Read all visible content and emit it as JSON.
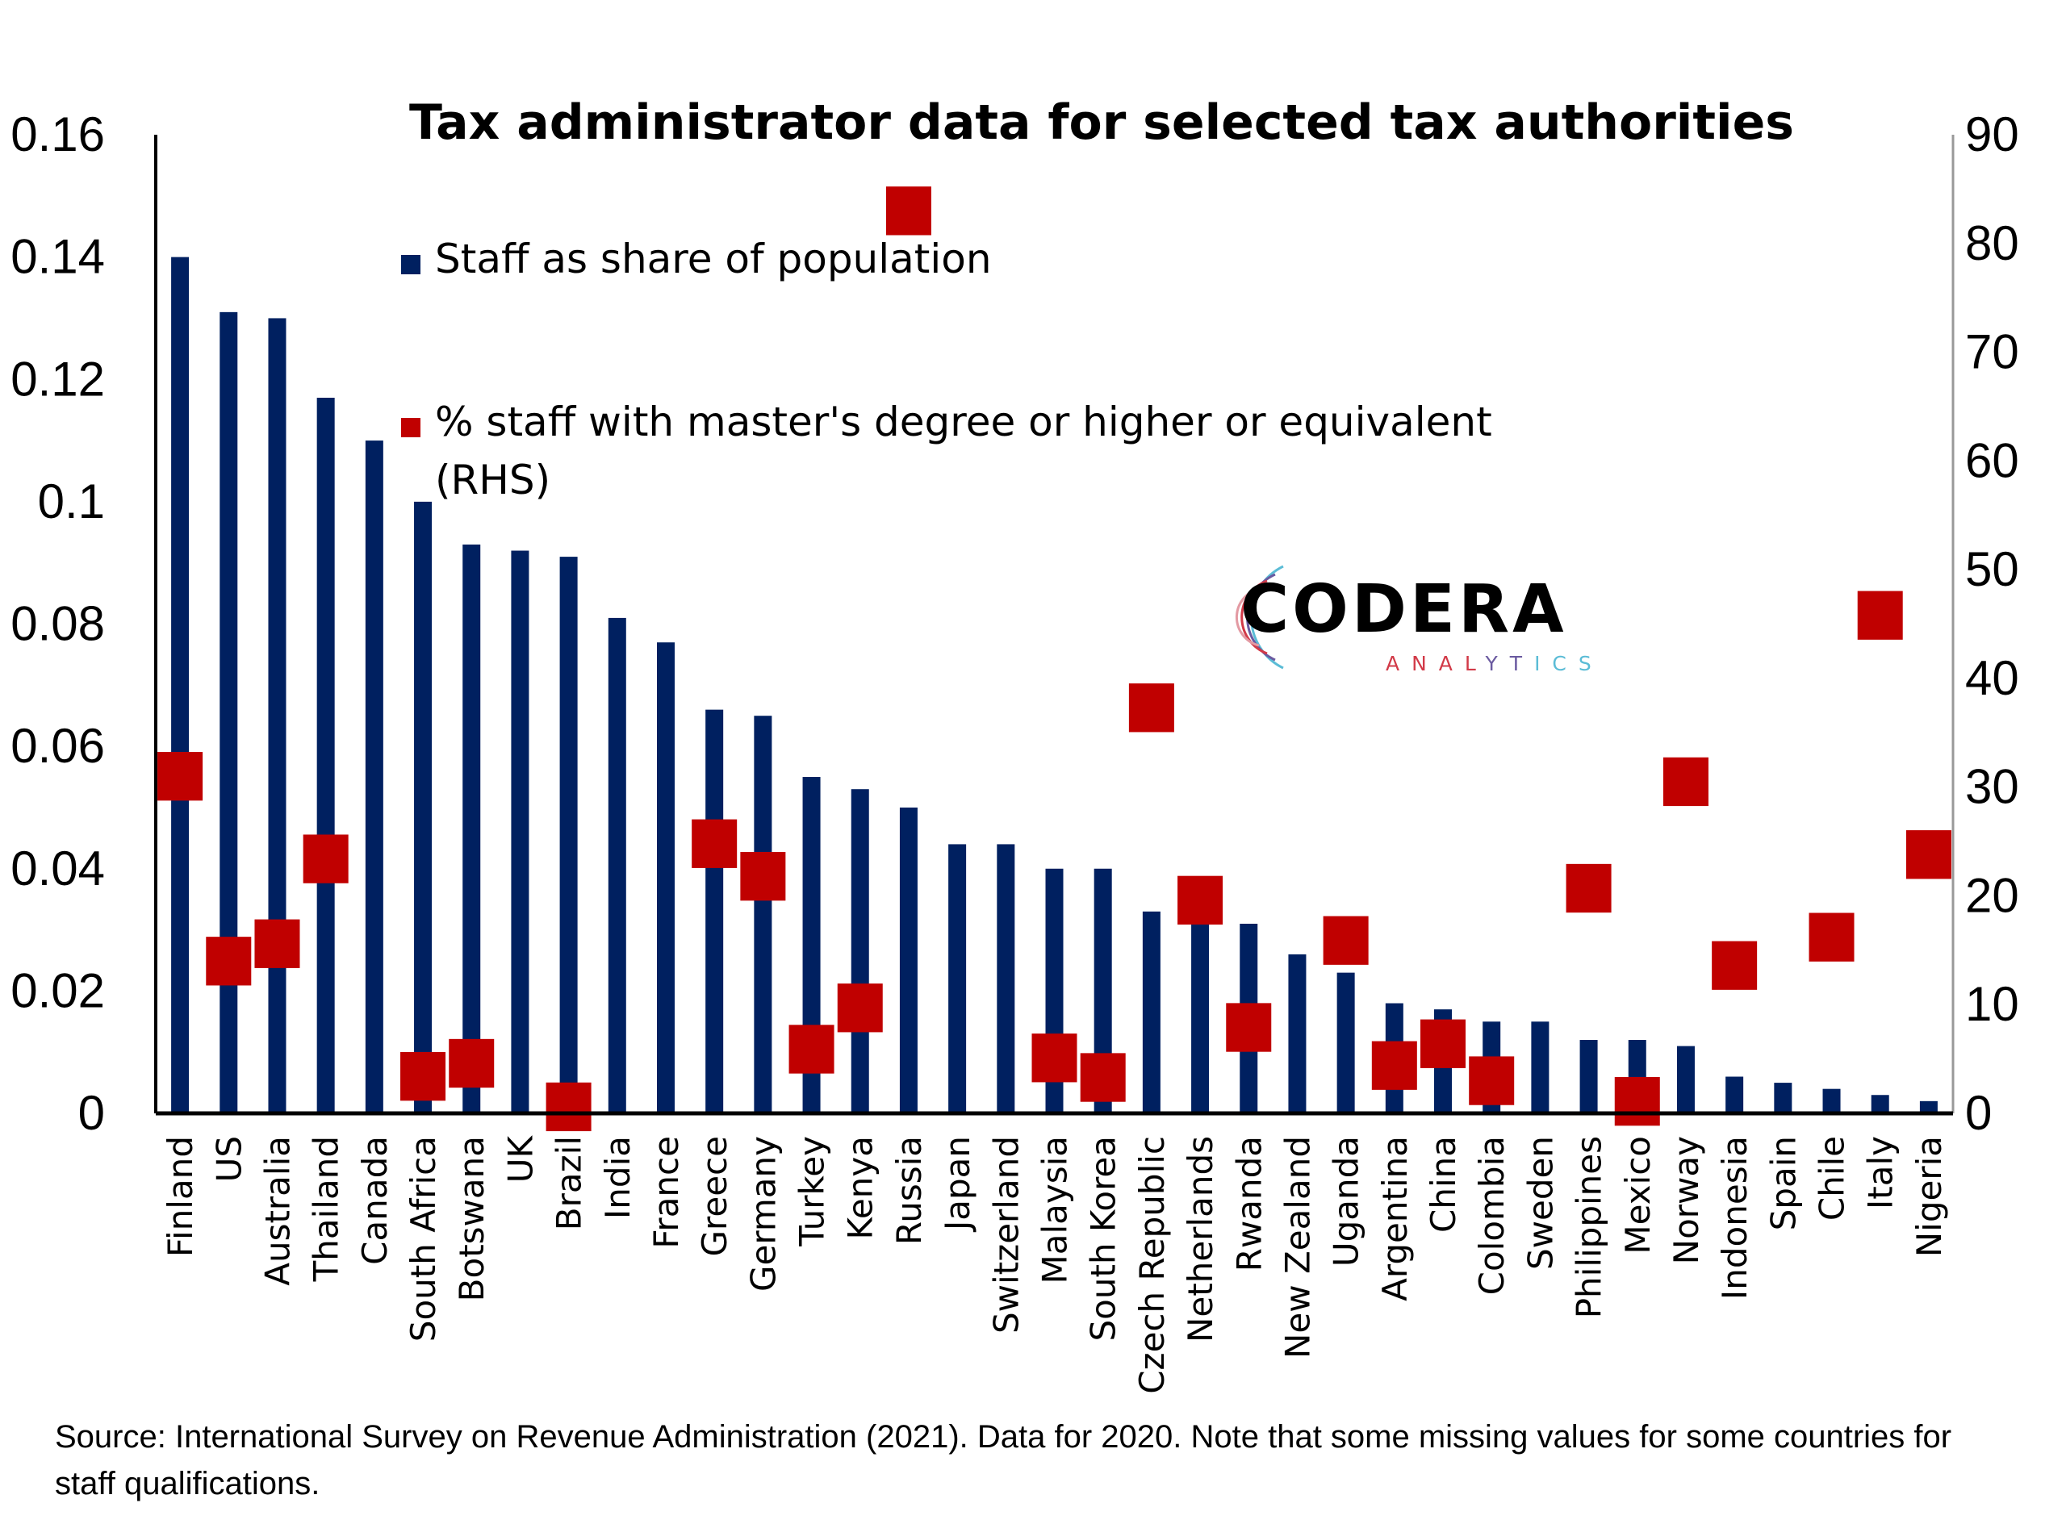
{
  "chart_data": {
    "type": "bar",
    "title": "Tax administrator data for selected tax authorities",
    "xlabel": "",
    "ylabel": "",
    "categories": [
      "Finland",
      "US",
      "Australia",
      "Thailand",
      "Canada",
      "South Africa",
      "Botswana",
      "UK",
      "Brazil",
      "India",
      "France",
      "Greece",
      "Germany",
      "Turkey",
      "Kenya",
      "Russia",
      "Japan",
      "Switzerland",
      "Malaysia",
      "South Korea",
      "Czech Republic",
      "Netherlands",
      "Rwanda",
      "New Zealand",
      "Uganda",
      "Argentina",
      "China",
      "Colombia",
      "Sweden",
      "Philippines",
      "Mexico",
      "Norway",
      "Indonesia",
      "Spain",
      "Chile",
      "Italy",
      "Nigeria"
    ],
    "series": [
      {
        "name": "Staff as share of population",
        "type": "bar",
        "axis": "left",
        "color": "#002060",
        "values": [
          0.14,
          0.131,
          0.13,
          0.117,
          0.11,
          0.1,
          0.093,
          0.092,
          0.091,
          0.081,
          0.077,
          0.066,
          0.065,
          0.055,
          0.053,
          0.05,
          0.044,
          0.044,
          0.04,
          0.04,
          0.033,
          0.032,
          0.031,
          0.026,
          0.023,
          0.018,
          0.017,
          0.015,
          0.015,
          0.012,
          0.012,
          0.011,
          0.006,
          0.005,
          0.004,
          0.003,
          0.002
        ]
      },
      {
        "name": "% staff with master's degree or higher or equivalent (RHS)",
        "type": "scatter",
        "marker": "square",
        "axis": "right",
        "color": "#C00000",
        "values": [
          31,
          14,
          15.6,
          23.4,
          null,
          3.4,
          4.6,
          null,
          0.6,
          null,
          null,
          24.8,
          21.8,
          5.9,
          9.7,
          83,
          null,
          null,
          5.1,
          3.3,
          37.3,
          19.6,
          7.9,
          null,
          15.9,
          4.4,
          6.4,
          3.0,
          null,
          20.7,
          1.1,
          30.5,
          13.6,
          null,
          16.2,
          45.8,
          23.8
        ]
      }
    ],
    "y_left": {
      "ylim": [
        0,
        0.16
      ],
      "ticks": [
        "0",
        "0.02",
        "0.04",
        "0.06",
        "0.08",
        "0.1",
        "0.12",
        "0.14",
        "0.16"
      ],
      "tick_values": [
        0,
        0.02,
        0.04,
        0.06,
        0.08,
        0.1,
        0.12,
        0.14,
        0.16
      ]
    },
    "y_right": {
      "ylim": [
        0,
        90
      ],
      "ticks": [
        "0",
        "10",
        "20",
        "30",
        "40",
        "50",
        "60",
        "70",
        "80",
        "90"
      ],
      "tick_values": [
        0,
        10,
        20,
        30,
        40,
        50,
        60,
        70,
        80,
        90
      ]
    },
    "grid": false,
    "legend": {
      "placement": "top-left",
      "entries": [
        {
          "label_lines": [
            "Staff as share of population"
          ],
          "color": "#002060"
        },
        {
          "label_lines": [
            "% staff with master's degree or higher or equivalent",
            "(RHS)"
          ],
          "color": "#C00000"
        }
      ]
    }
  },
  "source_note": "Source: International Survey on Revenue Administration (2021). Data for 2020. Note that some missing values for some countries for staff qualifications.",
  "logo": {
    "main": "CODERA",
    "sub_a": "ANAL",
    "sub_b": "YT",
    "sub_c": "ICS"
  }
}
